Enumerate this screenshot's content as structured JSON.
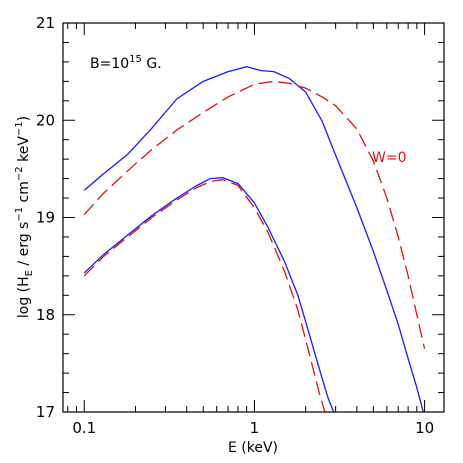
{
  "chart_data": {
    "type": "line",
    "title": "",
    "xlabel": "E (keV)",
    "ylabel": "log (H_E / erg s^-1 cm^-2 keV^-1)",
    "x_scale": "log",
    "xlim": [
      0.075,
      13
    ],
    "ylim": [
      17,
      21
    ],
    "x_ticks": [
      0.1,
      1,
      10
    ],
    "x_tick_labels": [
      "0.1",
      "1",
      "10"
    ],
    "y_ticks": [
      17,
      18,
      19,
      20,
      21
    ],
    "y_tick_labels": [
      "17",
      "18",
      "19",
      "20",
      "21"
    ],
    "grid": false,
    "annotations": [
      {
        "text": "B=10^15 G.",
        "color": "#000000"
      },
      {
        "text": "W=0",
        "color": "#dd1111"
      }
    ],
    "series": [
      {
        "group": "upper",
        "style": "solid",
        "color": "#1a1aff",
        "x": [
          0.1,
          0.13,
          0.18,
          0.25,
          0.35,
          0.5,
          0.7,
          0.9,
          1.1,
          1.3,
          1.6,
          2.0,
          2.5,
          3.0,
          4.0,
          5.0,
          6.0,
          7.0,
          8.0,
          9.0,
          10.0
        ],
        "y": [
          19.28,
          19.45,
          19.65,
          19.92,
          20.22,
          20.4,
          20.5,
          20.55,
          20.51,
          20.5,
          20.43,
          20.29,
          19.99,
          19.64,
          19.1,
          18.65,
          18.25,
          17.9,
          17.55,
          17.25,
          16.95
        ]
      },
      {
        "group": "upper",
        "style": "dashed",
        "color": "#dd1111",
        "x": [
          0.1,
          0.13,
          0.18,
          0.25,
          0.35,
          0.5,
          0.7,
          1.0,
          1.3,
          1.6,
          2.0,
          2.5,
          3.0,
          4.0,
          5.0,
          6.0,
          7.0,
          8.0,
          9.0,
          10.0
        ],
        "y": [
          19.03,
          19.25,
          19.48,
          19.7,
          19.9,
          20.08,
          20.24,
          20.37,
          20.4,
          20.38,
          20.33,
          20.24,
          20.15,
          19.91,
          19.58,
          19.2,
          18.8,
          18.4,
          18.0,
          17.65
        ]
      },
      {
        "group": "lower",
        "style": "solid",
        "color": "#1a1aff",
        "x": [
          0.1,
          0.13,
          0.18,
          0.25,
          0.35,
          0.45,
          0.55,
          0.65,
          0.8,
          1.0,
          1.2,
          1.5,
          1.8,
          2.1,
          2.4,
          2.7,
          3.0
        ],
        "y": [
          18.43,
          18.62,
          18.82,
          19.02,
          19.2,
          19.32,
          19.4,
          19.41,
          19.35,
          19.15,
          18.9,
          18.55,
          18.2,
          17.8,
          17.45,
          17.15,
          16.95
        ]
      },
      {
        "group": "lower",
        "style": "dashed",
        "color": "#dd1111",
        "x": [
          0.1,
          0.13,
          0.18,
          0.25,
          0.35,
          0.45,
          0.55,
          0.65,
          0.8,
          1.0,
          1.2,
          1.5,
          1.8,
          2.1,
          2.4,
          2.7
        ],
        "y": [
          18.4,
          18.6,
          18.8,
          19.0,
          19.18,
          19.3,
          19.37,
          19.39,
          19.33,
          19.1,
          18.85,
          18.45,
          18.05,
          17.6,
          17.2,
          16.9
        ]
      }
    ]
  }
}
